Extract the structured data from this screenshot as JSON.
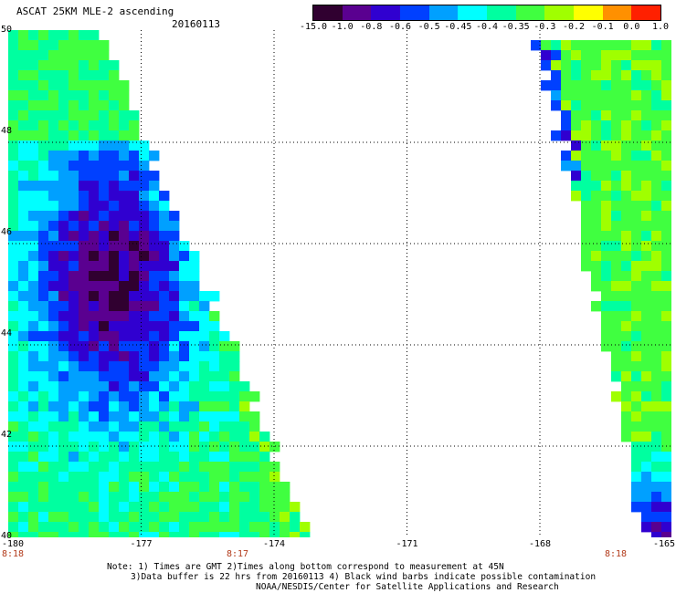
{
  "header": {
    "title": "ASCAT 25KM MLE-2 ascending",
    "date": "20160113"
  },
  "colorbar": {
    "labels": [
      "-15.0",
      "-1.0",
      "-0.8",
      "-0.6",
      "-0.5",
      "-0.45",
      "-0.4",
      "-0.35",
      "-0.3",
      "-0.2",
      "-0.1",
      "0.0",
      "1.0"
    ],
    "colors": [
      "#300030",
      "#5a0090",
      "#3000d0",
      "#0040ff",
      "#00a0ff",
      "#00ffff",
      "#00ffa0",
      "#40ff40",
      "#a0ff00",
      "#ffff00",
      "#ff9000",
      "#ff2000"
    ]
  },
  "axes": {
    "y_labels": [
      "50",
      "48",
      "46",
      "44",
      "42",
      "40"
    ],
    "x_labels": [
      "-180",
      "-177",
      "-174",
      "-171",
      "-168",
      "-165"
    ],
    "time_labels": [
      "8:18",
      "8:17",
      "8:18"
    ]
  },
  "notes": {
    "line1": "Note: 1) Times are GMT 2)Times along bottom correspond to measurement at 45N",
    "line2": "3)Data buffer is 22 hrs from 20160113 4) Black wind barbs indicate possible contamination",
    "line3": "NOAA/NESDIS/Center for Satellite Applications and Research"
  },
  "chart_data": {
    "type": "heatmap",
    "title": "ASCAT 25KM MLE-2 ascending",
    "date": "20160113",
    "lon_range": [
      -180,
      -165
    ],
    "lat_range": [
      40,
      50
    ],
    "value_range": [
      -15.0,
      1.0
    ],
    "swaths": [
      {
        "side": "west",
        "dominant_values": [
          "-1.0",
          "-0.8",
          "-0.6",
          "-0.45",
          "-0.35"
        ]
      },
      {
        "side": "east",
        "dominant_values": [
          "-0.35",
          "-0.3",
          "-0.45",
          "-0.8",
          "-1.0"
        ]
      }
    ]
  }
}
